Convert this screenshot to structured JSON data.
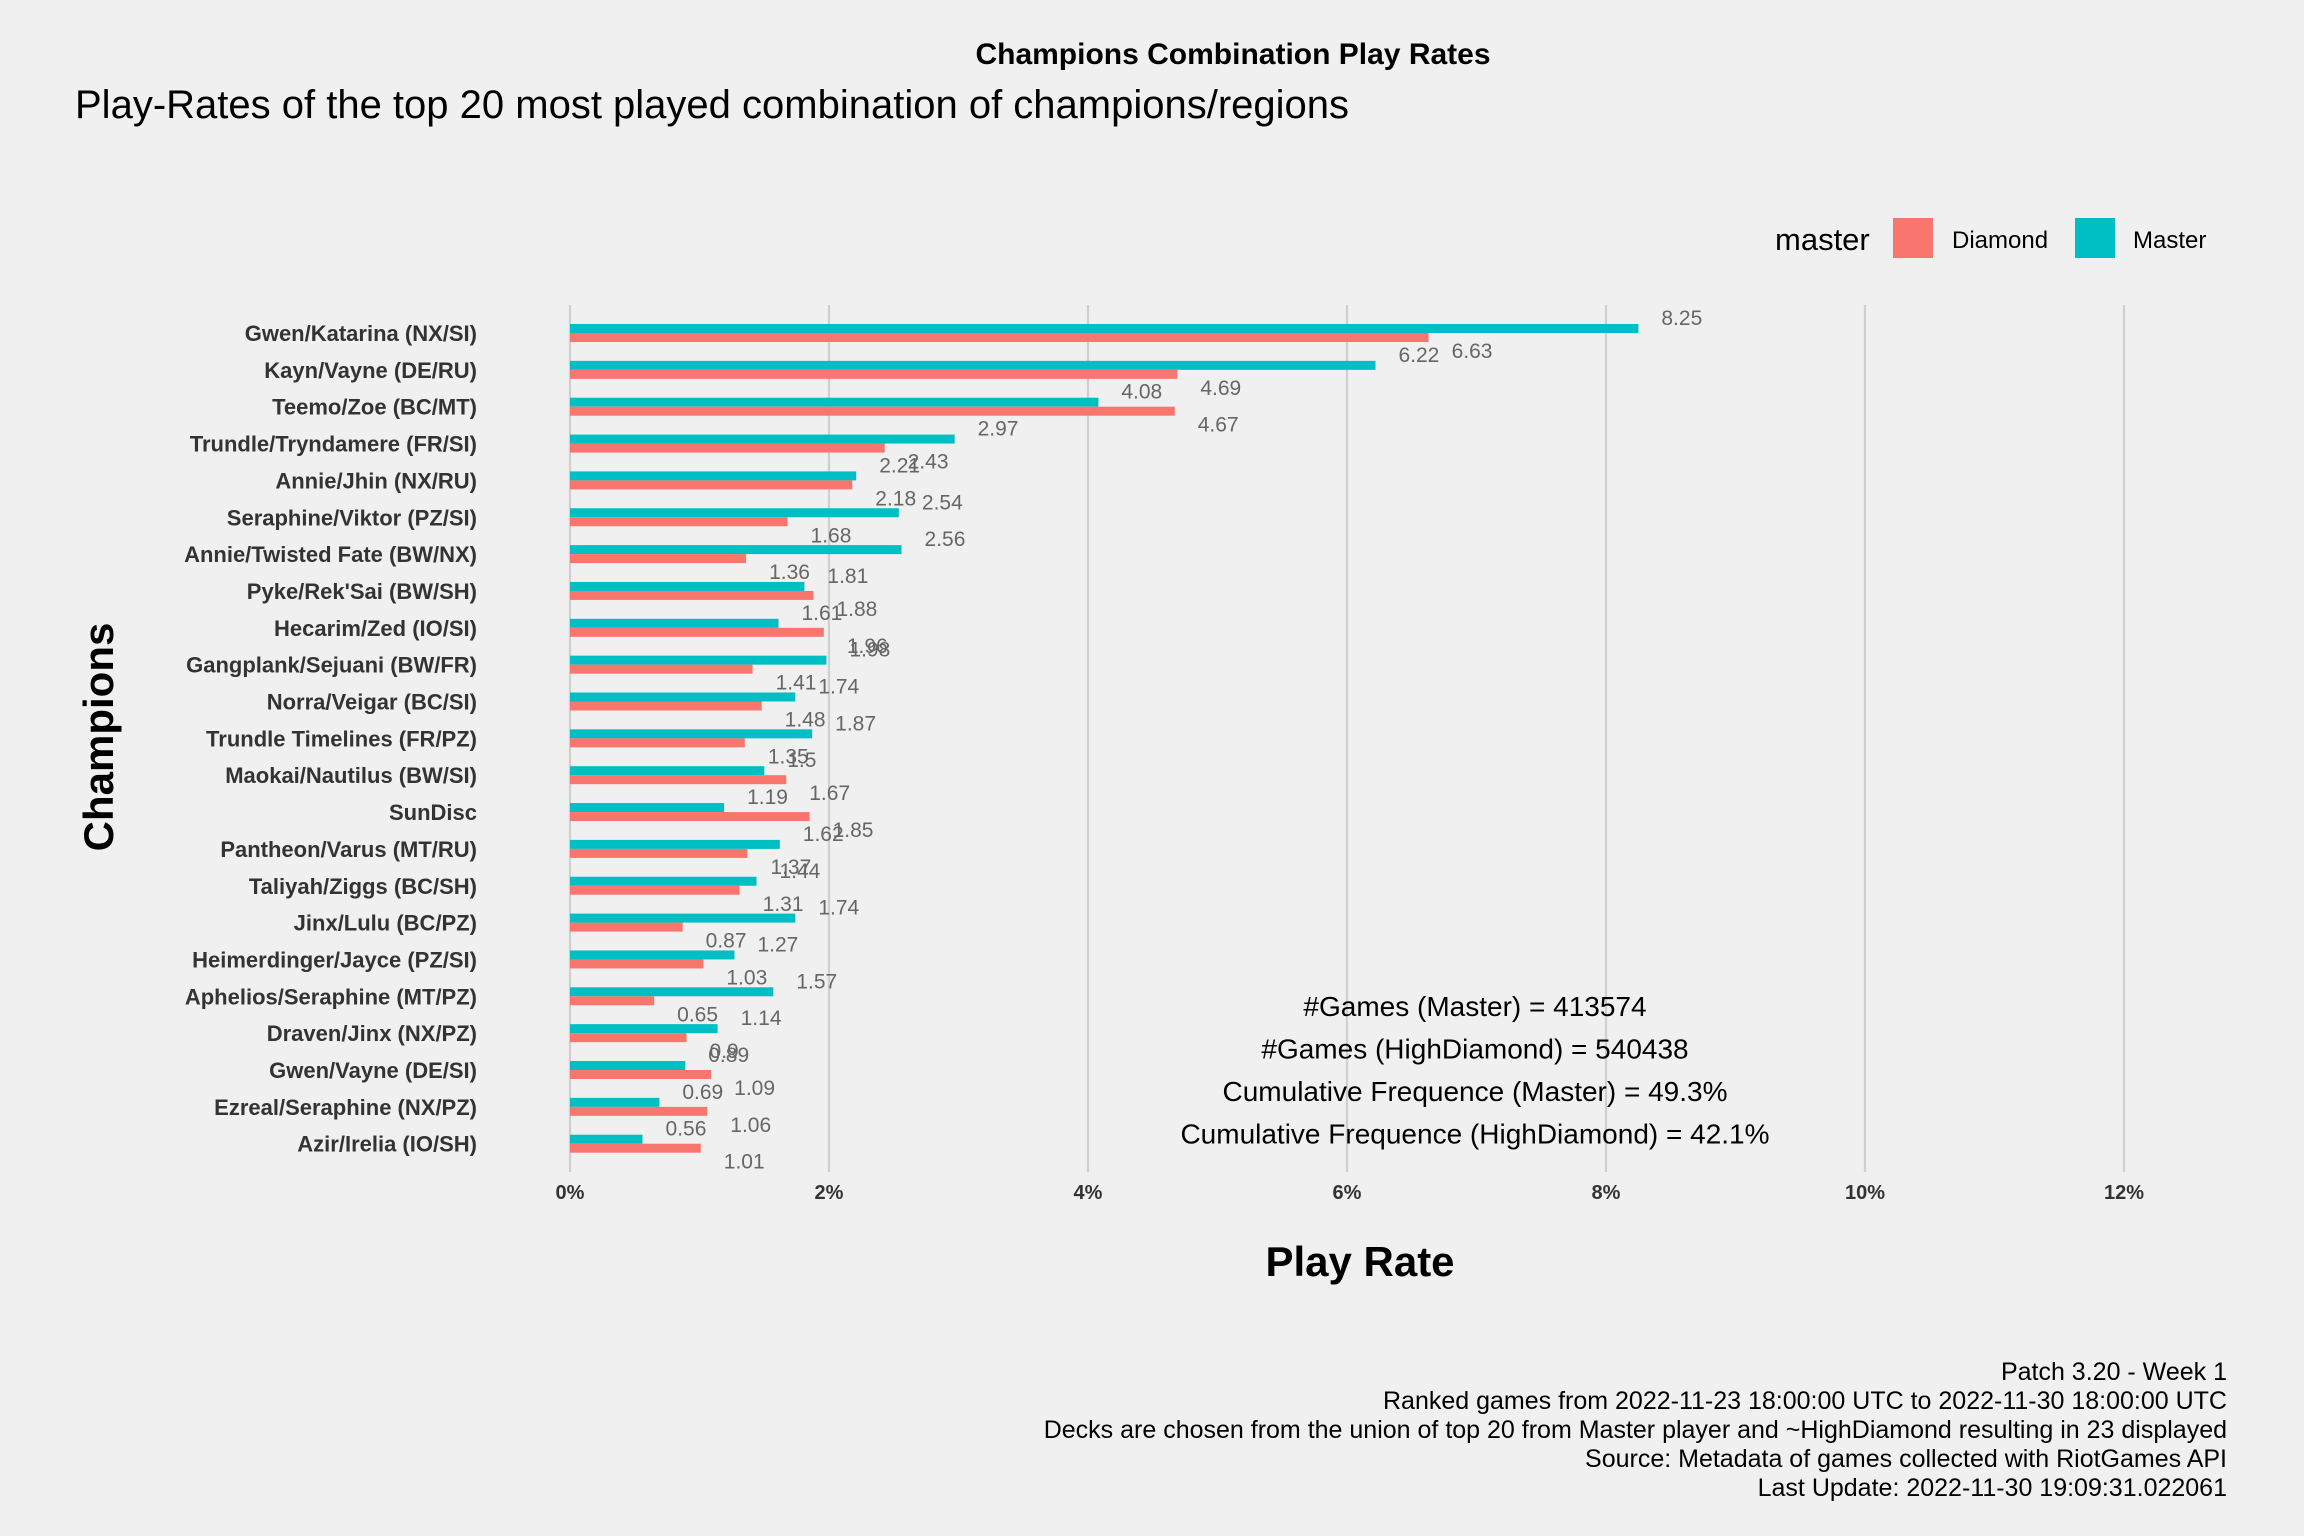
{
  "chart_data": {
    "type": "bar",
    "orientation": "horizontal",
    "title": "Champions Combination Play Rates",
    "subtitle": "Play-Rates of the top 20 most played combination of champions/regions",
    "xlabel": "Play Rate",
    "ylabel": "Champions",
    "xlim": [
      0,
      12.5
    ],
    "x_ticks": [
      0,
      2,
      4,
      6,
      8,
      10,
      12
    ],
    "x_tick_labels": [
      "0%",
      "2%",
      "4%",
      "6%",
      "8%",
      "10%",
      "12%"
    ],
    "grid": true,
    "legend": {
      "title": "master",
      "position": "top-right",
      "entries": [
        {
          "label": "Diamond",
          "color": "#F8766D"
        },
        {
          "label": "Master",
          "color": "#00BFC4"
        }
      ]
    },
    "categories": [
      "Gwen/Katarina (NX/SI)",
      "Kayn/Vayne (DE/RU)",
      "Teemo/Zoe (BC/MT)",
      "Trundle/Tryndamere (FR/SI)",
      "Annie/Jhin (NX/RU)",
      "Seraphine/Viktor (PZ/SI)",
      "Annie/Twisted Fate (BW/NX)",
      "Pyke/Rek'Sai (BW/SH)",
      "Hecarim/Zed (IO/SI)",
      "Gangplank/Sejuani (BW/FR)",
      "Norra/Veigar (BC/SI)",
      "Trundle Timelines (FR/PZ)",
      "Maokai/Nautilus (BW/SI)",
      "SunDisc",
      "Pantheon/Varus (MT/RU)",
      "Taliyah/Ziggs (BC/SH)",
      "Jinx/Lulu (BC/PZ)",
      "Heimerdinger/Jayce (PZ/SI)",
      "Aphelios/Seraphine (MT/PZ)",
      "Draven/Jinx (NX/PZ)",
      "Gwen/Vayne (DE/SI)",
      "Ezreal/Seraphine (NX/PZ)",
      "Azir/Irelia (IO/SH)"
    ],
    "series": [
      {
        "name": "Master",
        "color": "#00BFC4",
        "values": [
          8.25,
          6.22,
          4.08,
          2.97,
          2.21,
          2.54,
          2.56,
          1.81,
          1.61,
          1.98,
          1.74,
          1.87,
          1.5,
          1.19,
          1.62,
          1.44,
          1.74,
          1.27,
          1.57,
          1.14,
          0.89,
          0.69,
          0.56
        ],
        "labels": [
          "8.25",
          "6.22",
          "4.08",
          "2.97",
          "2.21",
          "2.54",
          "2.56",
          "1.81",
          "1.61",
          "1.98",
          "1.74",
          "1.87",
          "1.5",
          "1.19",
          "1.62",
          "1.44",
          "1.74",
          "1.27",
          "1.57",
          "1.14",
          "0.89",
          "0.69",
          "0.56"
        ]
      },
      {
        "name": "Diamond",
        "color": "#F8766D",
        "values": [
          6.63,
          4.69,
          4.67,
          2.43,
          2.18,
          1.68,
          1.36,
          1.88,
          1.96,
          1.41,
          1.48,
          1.35,
          1.67,
          1.85,
          1.37,
          1.31,
          0.87,
          1.03,
          0.65,
          0.9,
          1.09,
          1.06,
          1.01
        ],
        "labels": [
          "6.63",
          "4.69",
          "4.67",
          "2.43",
          "2.18",
          "1.68",
          "1.36",
          "1.88",
          "1.96",
          "1.41",
          "1.48",
          "1.35",
          "1.67",
          "1.85",
          "1.37",
          "1.31",
          "0.87",
          "1.03",
          "0.65",
          "0.9",
          "1.09",
          "1.06",
          "1.01"
        ]
      }
    ],
    "annotations": [
      "#Games (Master) = 413574",
      "#Games (HighDiamond) = 540438",
      "Cumulative Frequence (Master) = 49.3%",
      "Cumulative Frequence (HighDiamond) = 42.1%"
    ],
    "caption": [
      "Patch 3.20 - Week 1",
      "Ranked games from 2022-11-23 18:00:00 UTC to 2022-11-30 18:00:00 UTC",
      "Decks are chosen from the union of top 20 from Master player and ~HighDiamond resulting in 23 displayed",
      "Source: Metadata of games collected with RiotGames API",
      "Last Update: 2022-11-30 19:09:31.022061"
    ]
  }
}
